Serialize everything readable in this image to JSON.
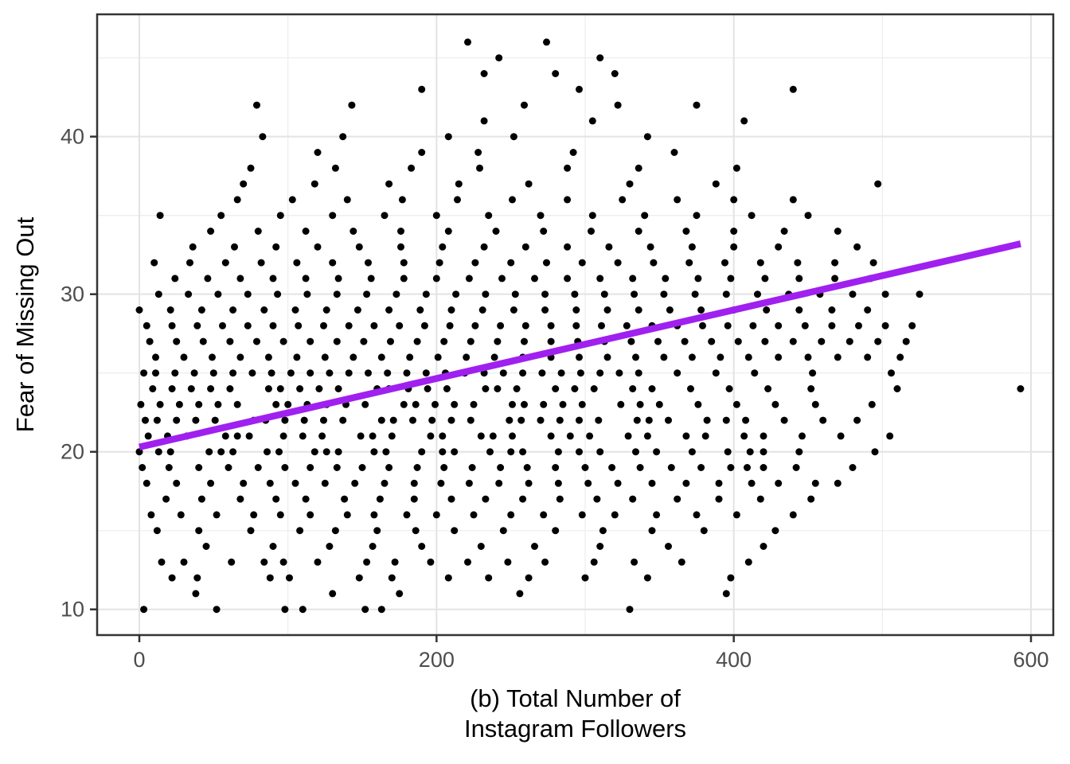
{
  "figure": {
    "background": "#FFFFFF",
    "panel_background": "#FFFFFF",
    "panel_border_color": "#333333",
    "grid_major_color": "#E3E3E3",
    "grid_minor_color": "#EEEEEE",
    "tick_mark_color": "#333333",
    "tick_label_color": "#4D4D4D",
    "axis_title_color": "#000000"
  },
  "chart_data": {
    "type": "scatter",
    "title": "",
    "xlabel_line1": "(b) Total Number of",
    "xlabel_line2": "Instagram Followers",
    "ylabel": "Fear of Missing Out",
    "x_tick_labels": [
      "0",
      "200",
      "400",
      "600"
    ],
    "x_ticks": [
      0,
      200,
      400,
      600
    ],
    "x_minor_ticks": [
      100,
      300,
      500
    ],
    "y_tick_labels": [
      "10",
      "20",
      "30",
      "40"
    ],
    "y_ticks": [
      10,
      20,
      30,
      40
    ],
    "y_minor_ticks": [
      15,
      25,
      35,
      45
    ],
    "xlim": [
      -28.4,
      615
    ],
    "ylim": [
      8.37,
      47.76
    ],
    "grid": true,
    "legend": "none",
    "point_color": "#000000",
    "point_radius": 4.5,
    "trend_line": {
      "name": "linear-fit",
      "color": "#A020F0",
      "width": 8.5,
      "x1": 0,
      "y1": 20.3,
      "x2": 593,
      "y2": 33.2
    },
    "rows": [
      {
        "y": 10,
        "x": [
          3,
          52,
          98,
          110,
          152,
          163,
          330
        ]
      },
      {
        "y": 11,
        "x": [
          38,
          130,
          175,
          256,
          395
        ]
      },
      {
        "y": 12,
        "x": [
          22,
          39,
          88,
          101,
          148,
          170,
          208,
          235,
          262,
          300,
          342,
          398
        ]
      },
      {
        "y": 13,
        "x": [
          15,
          30,
          62,
          84,
          97,
          120,
          153,
          172,
          196,
          221,
          248,
          273,
          306,
          333,
          365,
          410
        ]
      },
      {
        "y": 14,
        "x": [
          45,
          90,
          128,
          157,
          190,
          230,
          266,
          310,
          356,
          420
        ]
      },
      {
        "y": 15,
        "x": [
          12,
          40,
          75,
          108,
          132,
          160,
          186,
          212,
          245,
          280,
          312,
          345,
          380,
          428
        ]
      },
      {
        "y": 16,
        "x": [
          8,
          28,
          52,
          77,
          95,
          115,
          140,
          158,
          180,
          200,
          225,
          250,
          272,
          298,
          320,
          348,
          375,
          402,
          440
        ]
      },
      {
        "y": 17,
        "x": [
          18,
          42,
          68,
          92,
          112,
          138,
          162,
          185,
          210,
          233,
          258,
          283,
          308,
          332,
          362,
          390,
          418,
          452
        ]
      },
      {
        "y": 18,
        "x": [
          5,
          25,
          48,
          70,
          88,
          105,
          125,
          145,
          165,
          185,
          203,
          222,
          242,
          262,
          282,
          302,
          322,
          345,
          368,
          390,
          412,
          430,
          455,
          470
        ]
      },
      {
        "y": 19,
        "x": [
          2,
          20,
          40,
          60,
          80,
          98,
          115,
          133,
          150,
          168,
          187,
          205,
          224,
          243,
          261,
          280,
          300,
          318,
          337,
          358,
          378,
          398,
          409,
          420,
          442,
          480
        ]
      },
      {
        "y": 20,
        "x": [
          0,
          13,
          21,
          47,
          55,
          63,
          86,
          94,
          118,
          126,
          134,
          158,
          166,
          190,
          204,
          212,
          236,
          250,
          258,
          282,
          296,
          310,
          334,
          348,
          372,
          396,
          411,
          420,
          444,
          495
        ]
      },
      {
        "y": 21,
        "x": [
          6,
          19,
          32,
          58,
          66,
          74,
          97,
          110,
          123,
          149,
          157,
          170,
          196,
          204,
          230,
          238,
          251,
          277,
          290,
          303,
          329,
          342,
          368,
          381,
          407,
          420,
          446,
          472,
          505
        ]
      },
      {
        "y": 22,
        "x": [
          4,
          12,
          25,
          38,
          51,
          77,
          85,
          98,
          111,
          124,
          137,
          163,
          171,
          184,
          197,
          210,
          223,
          249,
          257,
          270,
          283,
          296,
          309,
          335,
          343,
          356,
          382,
          395,
          408,
          434,
          460,
          483
        ]
      },
      {
        "y": 23,
        "x": [
          1,
          14,
          27,
          40,
          53,
          66,
          92,
          100,
          113,
          126,
          139,
          152,
          178,
          186,
          199,
          212,
          225,
          251,
          259,
          272,
          285,
          298,
          324,
          337,
          350,
          376,
          402,
          428,
          455,
          493
        ]
      },
      {
        "y": 24,
        "x": [
          9,
          22,
          35,
          48,
          61,
          87,
          95,
          108,
          121,
          134,
          160,
          168,
          181,
          194,
          207,
          233,
          241,
          254,
          280,
          293,
          306,
          332,
          345,
          371,
          397,
          423,
          452,
          510,
          593
        ]
      },
      {
        "y": 25,
        "x": [
          3,
          11,
          24,
          37,
          50,
          63,
          76,
          89,
          102,
          115,
          128,
          141,
          154,
          167,
          180,
          193,
          206,
          219,
          232,
          245,
          258,
          271,
          284,
          297,
          310,
          323,
          336,
          362,
          388,
          414,
          453,
          506
        ]
      },
      {
        "y": 26,
        "x": [
          11,
          30,
          49,
          68,
          87,
          106,
          125,
          144,
          163,
          182,
          201,
          220,
          239,
          258,
          277,
          296,
          315,
          334,
          353,
          372,
          391,
          410,
          430,
          450,
          470,
          490,
          512
        ]
      },
      {
        "y": 27,
        "x": [
          7,
          25,
          43,
          61,
          79,
          97,
          115,
          133,
          151,
          169,
          187,
          205,
          223,
          241,
          259,
          277,
          295,
          313,
          331,
          349,
          367,
          385,
          403,
          421,
          440,
          459,
          478,
          497,
          516
        ]
      },
      {
        "y": 28,
        "x": [
          5,
          22,
          39,
          56,
          73,
          90,
          107,
          124,
          141,
          158,
          175,
          192,
          209,
          226,
          243,
          260,
          277,
          294,
          311,
          328,
          345,
          362,
          379,
          396,
          413,
          430,
          448,
          466,
          484,
          502,
          520
        ]
      },
      {
        "y": 29,
        "x": [
          0,
          21,
          42,
          63,
          84,
          105,
          126,
          147,
          168,
          189,
          210,
          231,
          252,
          273,
          294,
          315,
          336,
          357,
          378,
          400,
          422,
          444,
          466,
          490
        ]
      },
      {
        "y": 30,
        "x": [
          13,
          33,
          53,
          73,
          93,
          113,
          133,
          153,
          173,
          193,
          213,
          233,
          253,
          273,
          293,
          313,
          333,
          353,
          374,
          395,
          416,
          437,
          458,
          480,
          502,
          525
        ]
      },
      {
        "y": 31,
        "x": [
          24,
          46,
          68,
          90,
          112,
          134,
          156,
          178,
          200,
          222,
          244,
          266,
          288,
          310,
          332,
          354,
          376,
          398,
          421,
          444,
          468,
          492
        ]
      },
      {
        "y": 32,
        "x": [
          10,
          34,
          58,
          82,
          106,
          130,
          154,
          178,
          202,
          226,
          250,
          274,
          298,
          322,
          346,
          370,
          394,
          418,
          443,
          468,
          494
        ]
      },
      {
        "y": 33,
        "x": [
          36,
          64,
          92,
          120,
          148,
          176,
          204,
          232,
          260,
          288,
          316,
          344,
          372,
          400,
          430,
          483
        ]
      },
      {
        "y": 34,
        "x": [
          48,
          80,
          112,
          144,
          176,
          208,
          240,
          272,
          304,
          336,
          368,
          400,
          434,
          470
        ]
      },
      {
        "y": 35,
        "x": [
          14,
          55,
          95,
          130,
          165,
          200,
          235,
          270,
          305,
          340,
          375,
          412,
          450
        ]
      },
      {
        "y": 36,
        "x": [
          66,
          103,
          140,
          177,
          214,
          251,
          288,
          325,
          362,
          400,
          440
        ]
      },
      {
        "y": 37,
        "x": [
          70,
          118,
          168,
          215,
          262,
          330,
          388,
          497
        ]
      },
      {
        "y": 38,
        "x": [
          75,
          132,
          183,
          229,
          288,
          336,
          402
        ]
      },
      {
        "y": 39,
        "x": [
          120,
          190,
          228,
          292,
          360
        ]
      },
      {
        "y": 40,
        "x": [
          83,
          137,
          208,
          252,
          342
        ]
      },
      {
        "y": 41,
        "x": [
          232,
          305,
          407
        ]
      },
      {
        "y": 42,
        "x": [
          79,
          143,
          259,
          322,
          375
        ]
      },
      {
        "y": 43,
        "x": [
          190,
          296,
          440
        ]
      },
      {
        "y": 44,
        "x": [
          232,
          280,
          320
        ]
      },
      {
        "y": 45,
        "x": [
          242,
          310
        ]
      },
      {
        "y": 46,
        "x": [
          221,
          274
        ]
      }
    ]
  }
}
